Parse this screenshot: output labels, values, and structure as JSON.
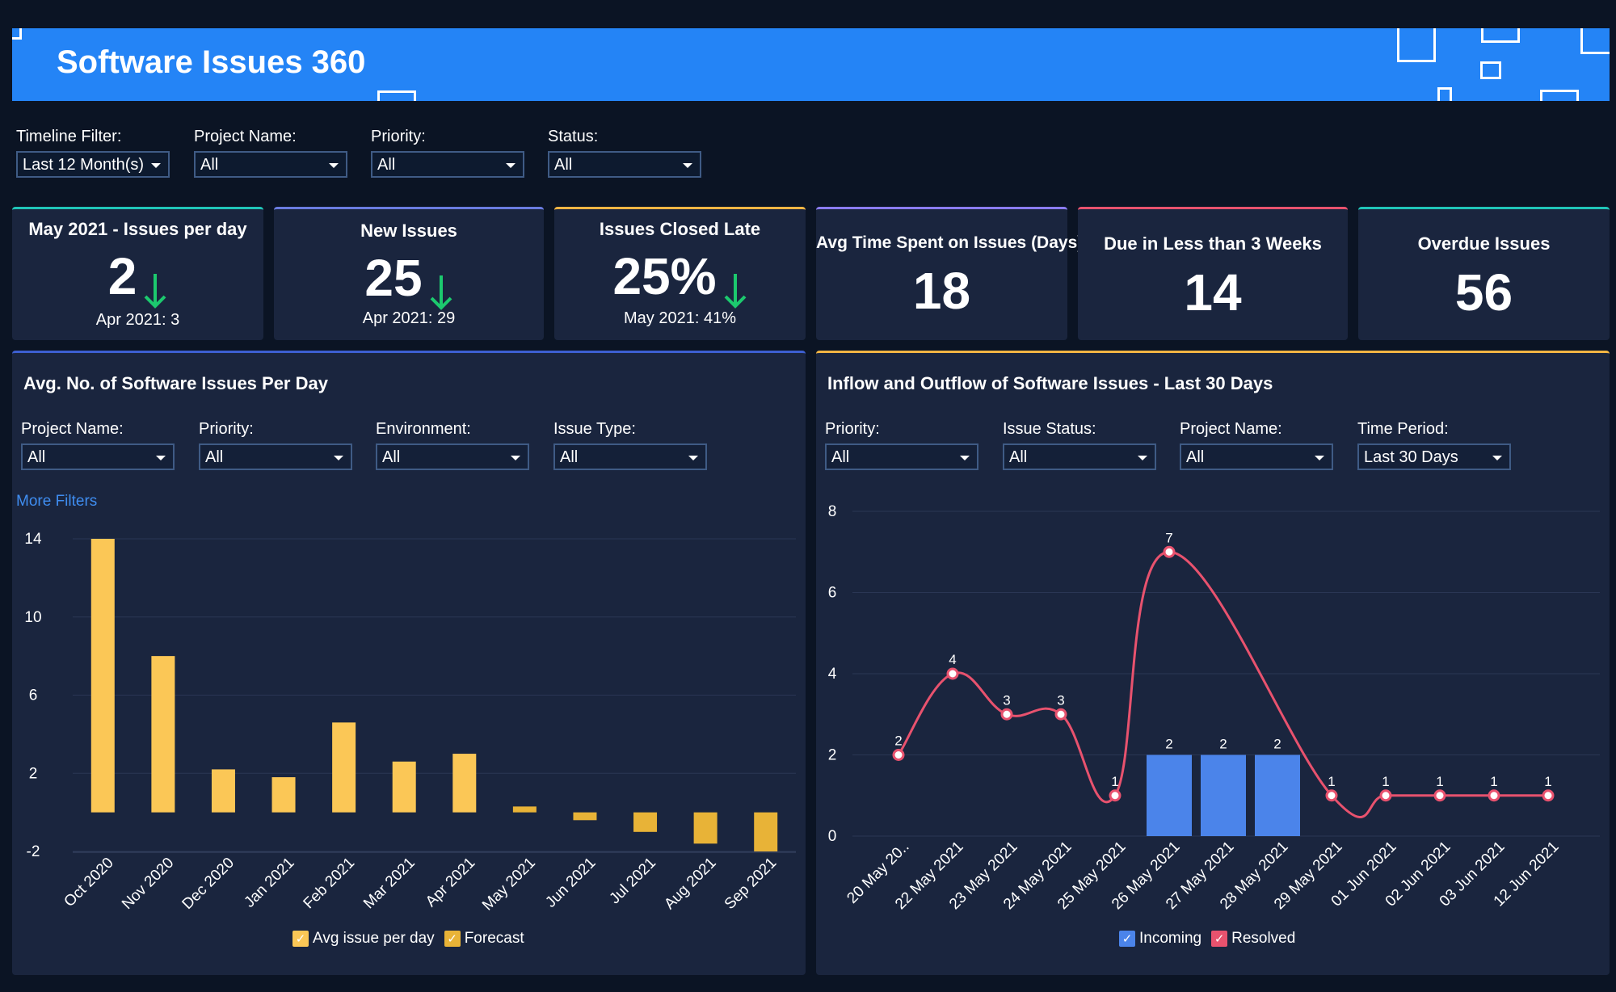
{
  "header": {
    "title": "Software Issues 360"
  },
  "filters": [
    {
      "label": "Timeline Filter:",
      "value": "Last 12 Month(s)"
    },
    {
      "label": "Project Name:",
      "value": "All"
    },
    {
      "label": "Priority:",
      "value": "All"
    },
    {
      "label": "Status:",
      "value": "All"
    }
  ],
  "kpis": [
    {
      "title": "May 2021 - Issues per day",
      "value": "2",
      "sub": "Apr 2021: 3",
      "trend": "down",
      "accent": "#20c5b8"
    },
    {
      "title": "New Issues",
      "value": "25",
      "sub": "Apr 2021: 29",
      "trend": "down",
      "accent": "#6a7ce0"
    },
    {
      "title": "Issues Closed Late",
      "value": "25%",
      "sub": "May 2021: 41%",
      "trend": "down",
      "accent": "#f2b544"
    },
    {
      "title": "Avg Time Spent on Issues (Days)",
      "value": "18",
      "accent": "#8b7cf0"
    },
    {
      "title": "Due in Less than 3 Weeks",
      "value": "14",
      "accent": "#e8526e"
    },
    {
      "title": "Overdue Issues",
      "value": "56",
      "accent": "#20c5b8"
    }
  ],
  "colors": {
    "trend_down": "#1cc96e",
    "bar_actual": "#fbc756",
    "bar_forecast": "#e8b337",
    "incoming": "#4b84ea",
    "resolved": "#e8526e"
  },
  "panel_left": {
    "title": "Avg. No. of Software Issues Per Day",
    "accent": "#3d5fd0",
    "filters": [
      {
        "label": "Project Name:",
        "value": "All"
      },
      {
        "label": "Priority:",
        "value": "All"
      },
      {
        "label": "Environment:",
        "value": "All"
      },
      {
        "label": "Issue Type:",
        "value": "All"
      }
    ],
    "more_filters": "More Filters",
    "legend": [
      "Avg issue per day",
      "Forecast"
    ]
  },
  "panel_right": {
    "title": "Inflow and Outflow of Software Issues - Last 30 Days",
    "accent": "#f2b544",
    "filters": [
      {
        "label": "Priority:",
        "value": "All"
      },
      {
        "label": "Issue Status:",
        "value": "All"
      },
      {
        "label": "Project Name:",
        "value": "All"
      },
      {
        "label": "Time Period:",
        "value": "Last 30 Days"
      }
    ],
    "legend": [
      "Incoming",
      "Resolved"
    ]
  },
  "chart_data": [
    {
      "type": "bar",
      "categories": [
        "Oct 2020",
        "Nov 2020",
        "Dec 2020",
        "Jan 2021",
        "Feb 2021",
        "Mar 2021",
        "Apr 2021",
        "May 2021",
        "Jun 2021",
        "Jul 2021",
        "Aug 2021",
        "Sep 2021"
      ],
      "series": [
        {
          "name": "Avg issue per day",
          "values": [
            14,
            8,
            2.2,
            1.8,
            4.6,
            2.6,
            3,
            null,
            null,
            null,
            null,
            null
          ]
        },
        {
          "name": "Forecast",
          "values": [
            null,
            null,
            null,
            null,
            null,
            null,
            null,
            0.3,
            -0.4,
            -1,
            -1.6,
            -2
          ]
        }
      ],
      "yticks": [
        14,
        10,
        6,
        2,
        -2
      ],
      "ylim": [
        -2,
        14
      ],
      "grid": true,
      "legend": "bottom"
    },
    {
      "type": "line",
      "categories": [
        "20 May 20..",
        "22 May 2021",
        "23 May 2021",
        "24 May 2021",
        "25 May 2021",
        "26 May 2021",
        "27 May 2021",
        "28 May 2021",
        "29 May 2021",
        "01 Jun 2021",
        "02 Jun 2021",
        "03 Jun 2021",
        "12 Jun 2021"
      ],
      "series": [
        {
          "name": "Incoming",
          "type": "bar",
          "values": [
            0,
            0,
            0,
            0,
            0,
            2,
            2,
            2,
            0,
            0,
            0,
            0,
            0
          ]
        },
        {
          "name": "Resolved",
          "type": "line",
          "values": [
            2,
            4,
            3,
            3,
            1,
            7,
            null,
            null,
            1,
            1,
            1,
            1,
            1
          ]
        }
      ],
      "bar_labels": [
        "",
        "",
        "",
        "",
        "",
        "2",
        "2",
        "2",
        "",
        "",
        "",
        "",
        ""
      ],
      "line_labels": [
        "2",
        "4",
        "3",
        "3",
        "1",
        "7",
        "",
        "",
        "1",
        "1",
        "1",
        "1",
        "1"
      ],
      "yticks": [
        0,
        2,
        4,
        6,
        8
      ],
      "ylim": [
        0,
        8
      ],
      "grid": true,
      "legend": "bottom"
    }
  ]
}
